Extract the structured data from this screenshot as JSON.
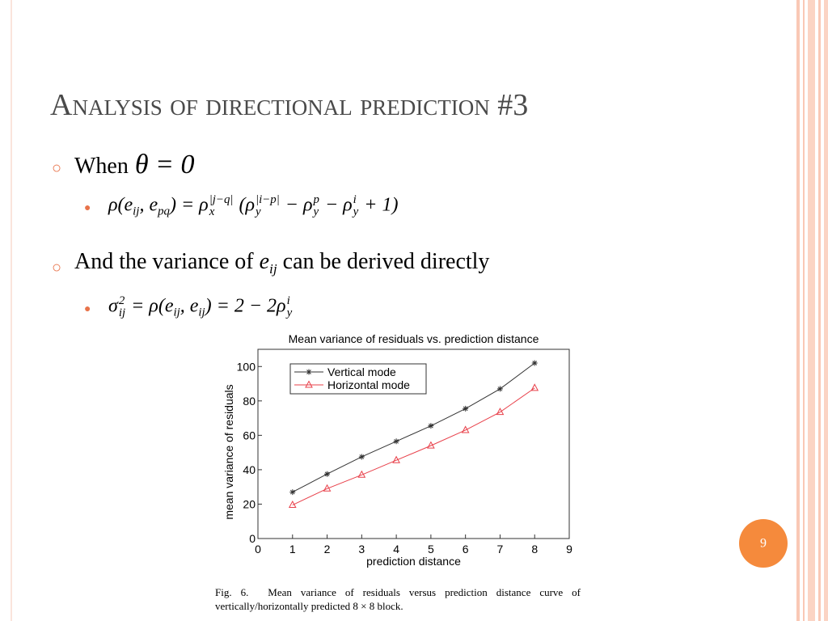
{
  "title": "Analysis of directional prediction #3",
  "bullets": [
    {
      "text": "When",
      "formula": [
        "θ = 0"
      ],
      "sub": [
        {
          "formula": [
            "ρ(e",
            {
              "sub": "ij"
            },
            ", e",
            {
              "sub": "pq"
            },
            ") = ρ",
            {
              "sup": "|j−q|",
              "sub": "x"
            },
            " (ρ",
            {
              "sup": "|i−p|",
              "sub": "y"
            },
            " − ρ",
            {
              "sup": "p",
              "sub": "y"
            },
            " − ρ",
            {
              "sup": "i",
              "sub": "y"
            },
            " + 1)"
          ]
        }
      ]
    },
    {
      "text": "And the variance of ",
      "var": "e",
      "var_sub": "ij",
      "text_after": " can be derived directly",
      "sub": [
        {
          "formula": [
            "σ",
            {
              "sup": "2",
              "sub": "ij"
            },
            " = ρ(e",
            {
              "sub": "ij"
            },
            ", e",
            {
              "sub": "ij"
            },
            ") = 2 − 2ρ",
            {
              "sup": "i",
              "sub": "y"
            }
          ]
        }
      ]
    }
  ],
  "caption": "Fig. 6.  Mean variance of residuals versus prediction distance curve of vertically/horizontally predicted 8 × 8 block.",
  "page_number": "9",
  "chart_data": {
    "type": "line",
    "title": "Mean variance of residuals vs. prediction distance",
    "x_label": "prediction distance",
    "y_label": "mean variance of residuals",
    "x": [
      1,
      2,
      3,
      4,
      5,
      6,
      7,
      8
    ],
    "series": [
      {
        "name": "Vertical mode",
        "color": "#333333",
        "marker": "star",
        "values": [
          27,
          37.5,
          47.5,
          56.5,
          65.5,
          75.5,
          87,
          102
        ]
      },
      {
        "name": "Horizontal mode",
        "color": "#e8404a",
        "marker": "triangle",
        "values": [
          19.5,
          29,
          37,
          45.5,
          54,
          63,
          73.5,
          87.5
        ]
      }
    ],
    "xlim": [
      0,
      9
    ],
    "xticks": [
      0,
      1,
      2,
      3,
      4,
      5,
      6,
      7,
      8,
      9
    ],
    "ylim": [
      0,
      110
    ],
    "yticks": [
      0,
      20,
      40,
      60,
      80,
      100
    ],
    "grid": false,
    "legend": "upper left"
  }
}
